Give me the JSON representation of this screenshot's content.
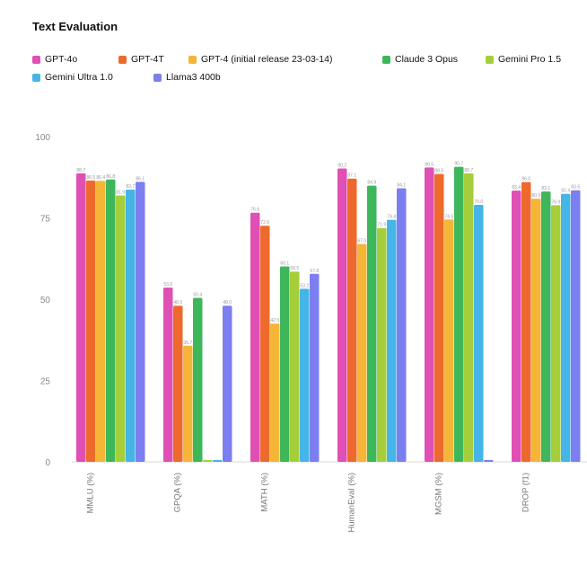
{
  "chart_data": {
    "type": "bar",
    "title": "Text Evaluation",
    "xlabel": "",
    "ylabel": "",
    "ylim": [
      0,
      100
    ],
    "yticks": [
      "0",
      "25",
      "50",
      "75",
      "100"
    ],
    "grid": false,
    "legend_position": "top-left",
    "categories": [
      "MMLU (%)",
      "GPQA (%)",
      "MATH (%)",
      "HumanEval (%)",
      "MGSM (%)",
      "DROP (f1)"
    ],
    "series": [
      {
        "name": "GPT-4o",
        "color": "#E04FB3",
        "values": [
          88.7,
          53.6,
          76.6,
          90.2,
          90.5,
          83.4
        ]
      },
      {
        "name": "GPT-4T",
        "color": "#EE6A2C",
        "values": [
          86.5,
          48.0,
          72.6,
          87.1,
          88.5,
          86.0
        ]
      },
      {
        "name": "GPT-4 (initial release 23-03-14)",
        "color": "#F5B536",
        "values": [
          86.4,
          35.7,
          42.5,
          67.0,
          74.5,
          80.9
        ]
      },
      {
        "name": "Claude 3 Opus",
        "color": "#3EB65A",
        "values": [
          86.8,
          50.4,
          60.1,
          84.9,
          90.7,
          83.1
        ]
      },
      {
        "name": "Gemini Pro 1.5",
        "color": "#A6CE3A",
        "values": [
          81.9,
          0,
          58.5,
          71.9,
          88.7,
          78.9
        ]
      },
      {
        "name": "Gemini Ultra 1.0",
        "color": "#45B4E6",
        "values": [
          83.7,
          0,
          53.2,
          74.4,
          79.0,
          82.4
        ]
      },
      {
        "name": "Llama3 400b",
        "color": "#7B7FF0",
        "values": [
          86.1,
          48.0,
          57.8,
          84.1,
          0,
          83.5
        ]
      }
    ]
  }
}
